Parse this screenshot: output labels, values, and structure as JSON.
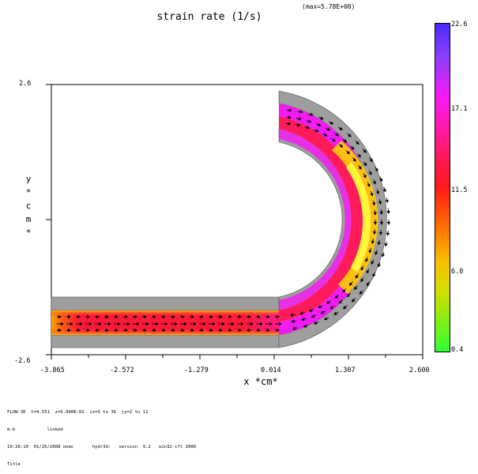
{
  "chart_data": {
    "type": "heatmap",
    "title": "strain rate (1/s)",
    "vector_max_label": "(max=5.78E+00)",
    "xlabel": "x *cm*",
    "ylabel": "y *cm*",
    "xlim": [
      -3.865,
      2.6
    ],
    "ylim": [
      -2.6,
      2.6
    ],
    "x_ticks": [
      "-3.865",
      "-2.572",
      "-1.279",
      "0.014",
      "1.307",
      "2.600"
    ],
    "y_ticks": [
      "2.6",
      "-2.6"
    ],
    "colorbar": {
      "min": 0.4,
      "max": 22.6,
      "labels": [
        "22.6",
        "17.1",
        "11.5",
        "6.0",
        "0.4"
      ],
      "colors": [
        "#4b28ff",
        "#f719f7",
        "#ff1a1a",
        "#f5c200",
        "#32ff32"
      ]
    },
    "footer_lines": [
      "FLOW-3D  t=4.551  z=6.000E-02  ix=3 to 36  jy=2 to 11",
      "m-b            linked",
      "19:26:10  01/26/2008 onmc       hydr3d:   version  9.2   win32-ifl 2006",
      "Title"
    ]
  }
}
